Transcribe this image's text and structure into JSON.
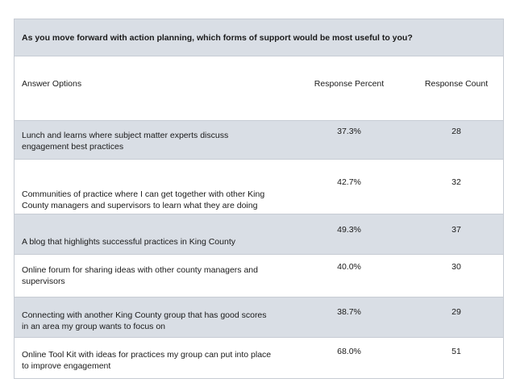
{
  "question": "As you move forward with action planning, which forms of support would be most useful to you?",
  "headers": {
    "answer": "Answer Options",
    "percent": "Response Percent",
    "count": "Response Count"
  },
  "rows": [
    {
      "answer": [
        "Lunch and learns where subject matter experts discuss",
        "engagement best practices"
      ],
      "percent": "37.3%",
      "count": "28"
    },
    {
      "answer": [
        "Communities of practice where I can get together with other King",
        "County managers and supervisors to learn what they are doing"
      ],
      "percent": "42.7%",
      "count": "32"
    },
    {
      "answer": [
        "A blog that highlights successful practices in King County"
      ],
      "percent": "49.3%",
      "count": "37"
    },
    {
      "answer": [
        "Online forum for sharing ideas with other county managers and",
        "supervisors"
      ],
      "percent": "40.0%",
      "count": "30"
    },
    {
      "answer": [
        "Connecting with another King County group that has good scores",
        "in an area my group wants to focus on"
      ],
      "percent": "38.7%",
      "count": "29"
    },
    {
      "answer": [
        "Online Tool Kit with ideas for practices my group can put into place",
        "to improve engagement"
      ],
      "percent": "68.0%",
      "count": "51"
    }
  ],
  "colors": {
    "band": "#d9dee5",
    "border": "#c7ccd4"
  }
}
